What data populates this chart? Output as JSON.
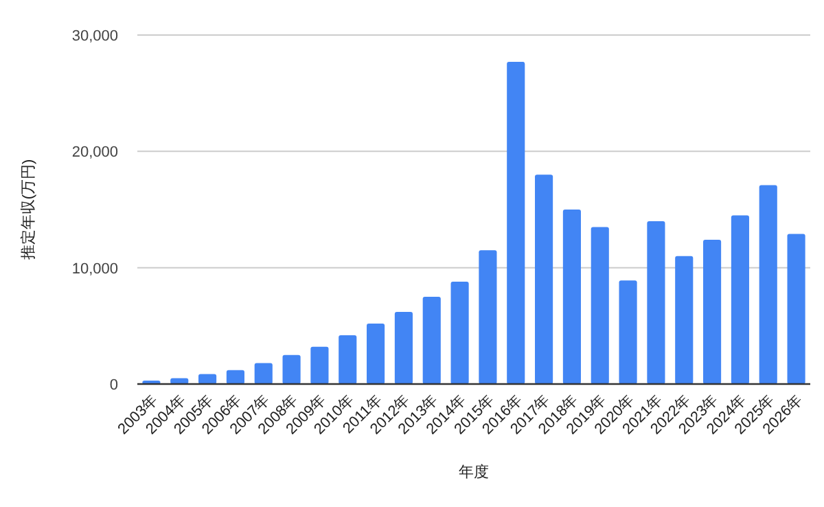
{
  "chart_data": {
    "type": "bar",
    "xlabel": "年度",
    "ylabel": "推定年収(万円)",
    "categories": [
      "2003年",
      "2004年",
      "2005年",
      "2006年",
      "2007年",
      "2008年",
      "2009年",
      "2010年",
      "2011年",
      "2012年",
      "2013年",
      "2014年",
      "2015年",
      "2016年",
      "2017年",
      "2018年",
      "2019年",
      "2020年",
      "2021年",
      "2022年",
      "2023年",
      "2024年",
      "2025年",
      "2026年"
    ],
    "values": [
      300,
      500,
      850,
      1200,
      1800,
      2500,
      3200,
      4200,
      5200,
      6200,
      7500,
      8800,
      11500,
      27700,
      18000,
      15000,
      13500,
      8900,
      14000,
      11000,
      12400,
      14500,
      17100,
      12900
    ],
    "color": "#4285f4",
    "ylim": [
      0,
      30000
    ],
    "yticks": [
      0,
      {
        "value": 10000,
        "label": "10,000"
      },
      {
        "value": 20000,
        "label": "20,000"
      },
      {
        "value": 30000,
        "label": "30,000"
      }
    ],
    "grid": "y"
  }
}
